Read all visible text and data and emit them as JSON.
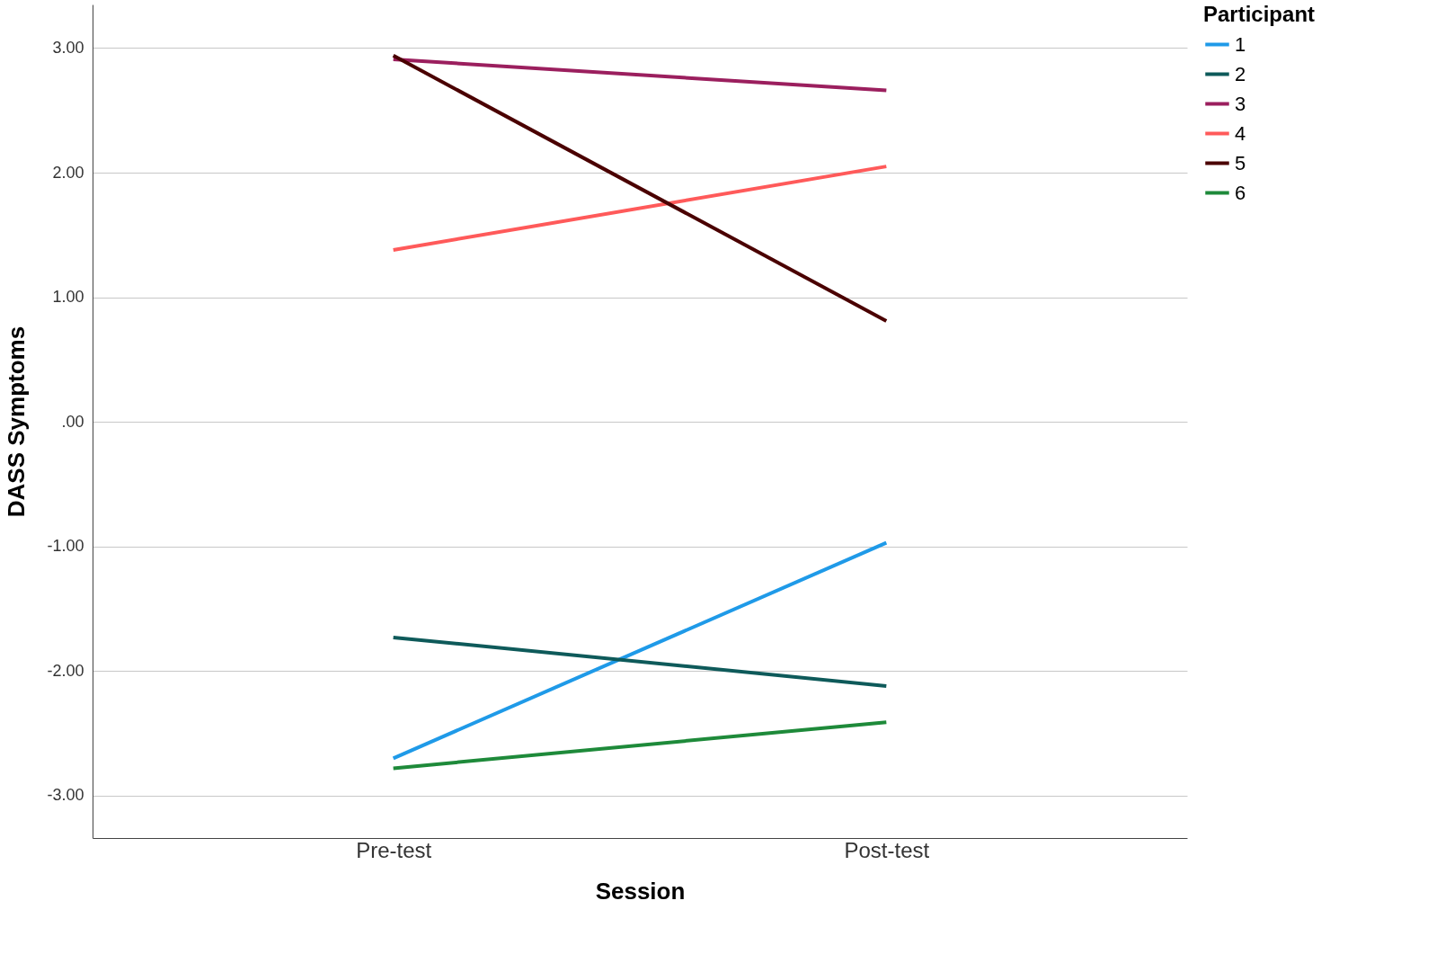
{
  "chart_data": {
    "type": "line",
    "xlabel": "Session",
    "ylabel": "DASS Symptoms",
    "legend_title": "Participant",
    "categories": [
      "Pre-test",
      "Post-test"
    ],
    "series": [
      {
        "name": "1",
        "color": "#1f9ae8",
        "values": [
          -2.7,
          -0.97
        ]
      },
      {
        "name": "2",
        "color": "#0e5a5a",
        "values": [
          -1.73,
          -2.12
        ]
      },
      {
        "name": "3",
        "color": "#9b1f5e",
        "values": [
          2.91,
          2.66
        ]
      },
      {
        "name": "4",
        "color": "#ff5a5a",
        "values": [
          1.38,
          2.05
        ]
      },
      {
        "name": "5",
        "color": "#4a0000",
        "values": [
          2.94,
          0.81
        ]
      },
      {
        "name": "6",
        "color": "#1e8a3a",
        "values": [
          -2.78,
          -2.41
        ]
      }
    ],
    "ylim": [
      -3.34,
      3.35
    ],
    "yticks": [
      {
        "value": -3,
        "label": "-3.00"
      },
      {
        "value": -2,
        "label": "-2.00"
      },
      {
        "value": -1,
        "label": "-1.00"
      },
      {
        "value": 0,
        "label": ".00"
      },
      {
        "value": 1,
        "label": "1.00"
      },
      {
        "value": 2,
        "label": "2.00"
      },
      {
        "value": 3,
        "label": "3.00"
      }
    ],
    "grid": "y",
    "legend": "top right",
    "marker": "none",
    "line_style": "solid"
  }
}
